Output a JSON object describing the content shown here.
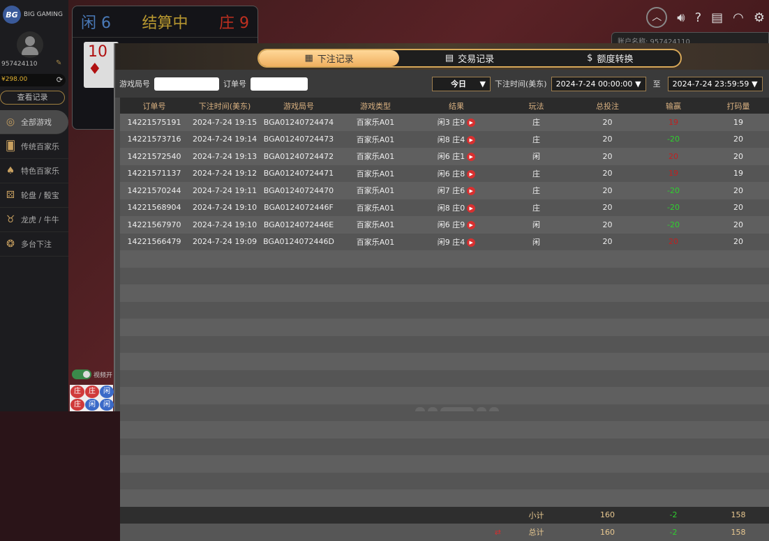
{
  "brand": {
    "logo_text": "BIG GAMING",
    "logo_badge": "BG"
  },
  "user": {
    "id": "957424110",
    "balance": "¥298.00",
    "records_button": "查看记录"
  },
  "sidebar": {
    "items": [
      {
        "label": "全部游戏",
        "icon": "chip-icon"
      },
      {
        "label": "传统百家乐",
        "icon": "cards-icon"
      },
      {
        "label": "特色百家乐",
        "icon": "card-spade-icon"
      },
      {
        "label": "轮盘 / 骰宝",
        "icon": "dice-cup-icon"
      },
      {
        "label": "龙虎 / 牛牛",
        "icon": "bull-icon"
      },
      {
        "label": "多台下注",
        "icon": "chips-icon"
      }
    ]
  },
  "game": {
    "player": "闲 6",
    "status": "结算中",
    "banker": "庄 9",
    "card": "10",
    "card_suit": "♦",
    "video_toggle": "视频开",
    "account_label": "账户名称: 957424110"
  },
  "road": [
    "庄",
    "庄",
    "闲",
    "庄",
    "闲",
    "闲"
  ],
  "modal": {
    "tabs": [
      {
        "label": "下注记录",
        "icon": "calendar-icon",
        "active": true
      },
      {
        "label": "交易记录",
        "icon": "clipboard-icon",
        "active": false
      },
      {
        "label": "额度转换",
        "icon": "coins-icon",
        "active": false
      }
    ],
    "filters": {
      "round_label": "游戏局号",
      "round_value": "",
      "order_label": "订单号",
      "order_value": "",
      "period": "今日",
      "time_label": "下注时间(美东)",
      "from": "2024-7-24 00:00:00",
      "to_label": "至",
      "to": "2024-7-24 23:59:59"
    },
    "columns": [
      "订单号",
      "下注时间(美东)",
      "游戏局号",
      "游戏类型",
      "结果",
      "玩法",
      "总投注",
      "输赢",
      "打码量"
    ],
    "rows": [
      [
        "14221575191",
        "2024-7-24 19:15",
        "BGA01240724474",
        "百家乐A01",
        "闲3 庄9",
        "庄",
        "20",
        "19",
        "19"
      ],
      [
        "14221573716",
        "2024-7-24 19:14",
        "BGA01240724473",
        "百家乐A01",
        "闲8 庄4",
        "庄",
        "20",
        "-20",
        "20"
      ],
      [
        "14221572540",
        "2024-7-24 19:13",
        "BGA01240724472",
        "百家乐A01",
        "闲6 庄1",
        "闲",
        "20",
        "20",
        "20"
      ],
      [
        "14221571137",
        "2024-7-24 19:12",
        "BGA01240724471",
        "百家乐A01",
        "闲6 庄8",
        "庄",
        "20",
        "19",
        "19"
      ],
      [
        "14221570244",
        "2024-7-24 19:11",
        "BGA01240724470",
        "百家乐A01",
        "闲7 庄6",
        "庄",
        "20",
        "-20",
        "20"
      ],
      [
        "14221568904",
        "2024-7-24 19:10",
        "BGA0124072446F",
        "百家乐A01",
        "闲8 庄0",
        "庄",
        "20",
        "-20",
        "20"
      ],
      [
        "14221567970",
        "2024-7-24 19:10",
        "BGA0124072446E",
        "百家乐A01",
        "闲6 庄9",
        "闲",
        "20",
        "-20",
        "20"
      ],
      [
        "14221566479",
        "2024-7-24 19:09",
        "BGA0124072446D",
        "百家乐A01",
        "闲9 庄4",
        "闲",
        "20",
        "20",
        "20"
      ]
    ],
    "subtotal": {
      "label": "小计",
      "bet": "160",
      "win": "-2",
      "valid": "158"
    },
    "total": {
      "label": "总计",
      "bet": "160",
      "win": "-2",
      "valid": "158"
    }
  },
  "colors": {
    "accent": "#f0b060",
    "win": "#c02020",
    "loss": "#2ed02e"
  }
}
